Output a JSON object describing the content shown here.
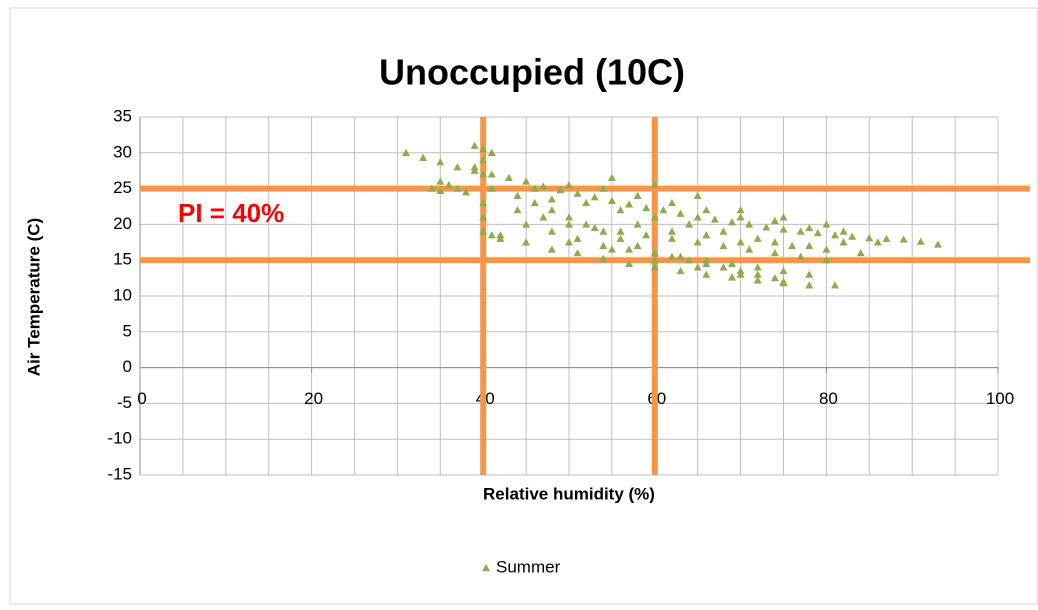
{
  "chart_data": {
    "type": "scatter",
    "title": "Unoccupied (10C)",
    "xlabel": "Relative humidity (%)",
    "ylabel": "Air Temperature (C)",
    "xlim": [
      0,
      100
    ],
    "ylim": [
      -15,
      35
    ],
    "xticks": [
      0,
      20,
      40,
      60,
      80,
      100
    ],
    "yticks": [
      -15,
      -10,
      -5,
      0,
      5,
      10,
      15,
      20,
      25,
      30,
      35
    ],
    "x_gridlines": [
      5,
      10,
      15,
      20,
      25,
      30,
      35,
      40,
      45,
      50,
      55,
      60,
      65,
      70,
      75,
      80,
      85,
      90,
      95,
      100
    ],
    "grid": true,
    "reference_lines": {
      "x": [
        40,
        60
      ],
      "y": [
        15,
        25
      ],
      "color": "#f79646"
    },
    "annotation": {
      "text": "PI = 40%",
      "color": "#ff0000"
    },
    "legend": "bottom",
    "series": [
      {
        "name": "Summer",
        "color": "#8fac4c",
        "x": [
          31,
          33,
          35,
          37,
          39,
          41,
          43,
          45,
          47,
          49,
          51,
          53,
          55,
          57,
          59,
          61,
          63,
          65,
          67,
          69,
          71,
          73,
          75,
          77,
          79,
          81,
          83,
          85,
          87,
          89,
          91,
          93,
          39,
          40,
          41,
          40,
          39,
          40,
          41,
          40,
          40,
          40,
          41,
          42,
          34,
          35,
          36,
          37,
          38,
          35,
          42,
          45,
          48,
          51,
          54,
          57,
          60,
          63,
          66,
          69,
          72,
          75,
          78,
          81,
          44,
          46,
          48,
          50,
          52,
          54,
          56,
          58,
          60,
          62,
          64,
          66,
          68,
          70,
          72,
          74,
          44,
          47,
          50,
          53,
          56,
          59,
          62,
          65,
          68,
          71,
          74,
          77,
          80,
          45,
          48,
          51,
          54,
          57,
          60,
          63,
          66,
          69,
          72,
          75,
          78,
          46,
          50,
          54,
          58,
          62,
          66,
          70,
          74,
          78,
          82,
          48,
          52,
          56,
          60,
          64,
          68,
          72,
          76,
          80,
          84,
          55,
          60,
          65,
          70,
          75,
          80,
          50,
          55,
          60,
          65,
          70,
          75,
          58,
          62,
          66,
          70,
          74,
          78,
          82,
          86
        ],
        "values": [
          30,
          29.3,
          28.7,
          28,
          27.5,
          27,
          26.5,
          26,
          25.3,
          24.8,
          24.3,
          23.8,
          23.3,
          22.8,
          22.3,
          22,
          21.5,
          21,
          20.7,
          20.3,
          20,
          19.6,
          19.3,
          19,
          18.8,
          18.5,
          18.3,
          18.1,
          18,
          17.9,
          17.6,
          17.2,
          31,
          30.5,
          30,
          29,
          28,
          27,
          25,
          23,
          21,
          19,
          18.5,
          18,
          25,
          26,
          25.5,
          25,
          24.5,
          24.7,
          18.5,
          17.5,
          16.5,
          16,
          15.2,
          14.5,
          14,
          13.5,
          13,
          12.6,
          12.2,
          11.8,
          11.5,
          11.5,
          24,
          23,
          22,
          21,
          20,
          19,
          18,
          17,
          16,
          15.5,
          15,
          14.5,
          14,
          13.5,
          13,
          12.5,
          22,
          21,
          20,
          19.5,
          19,
          18.5,
          18,
          17.5,
          17,
          16.5,
          16,
          15.5,
          15,
          20,
          19,
          18,
          17,
          16.5,
          16,
          15.5,
          15,
          14.5,
          14,
          13.5,
          13,
          25,
          25.5,
          25,
          24,
          23,
          22,
          21,
          20.5,
          19.5,
          19,
          23.5,
          23,
          22,
          21,
          20,
          19,
          18,
          17,
          16.5,
          16,
          26.5,
          25.5,
          24,
          22,
          21,
          20,
          17.5,
          16.5,
          15,
          14,
          13,
          12,
          20,
          19,
          18.5,
          17.5,
          17.5,
          17,
          17.5,
          17.5
        ]
      }
    ]
  }
}
